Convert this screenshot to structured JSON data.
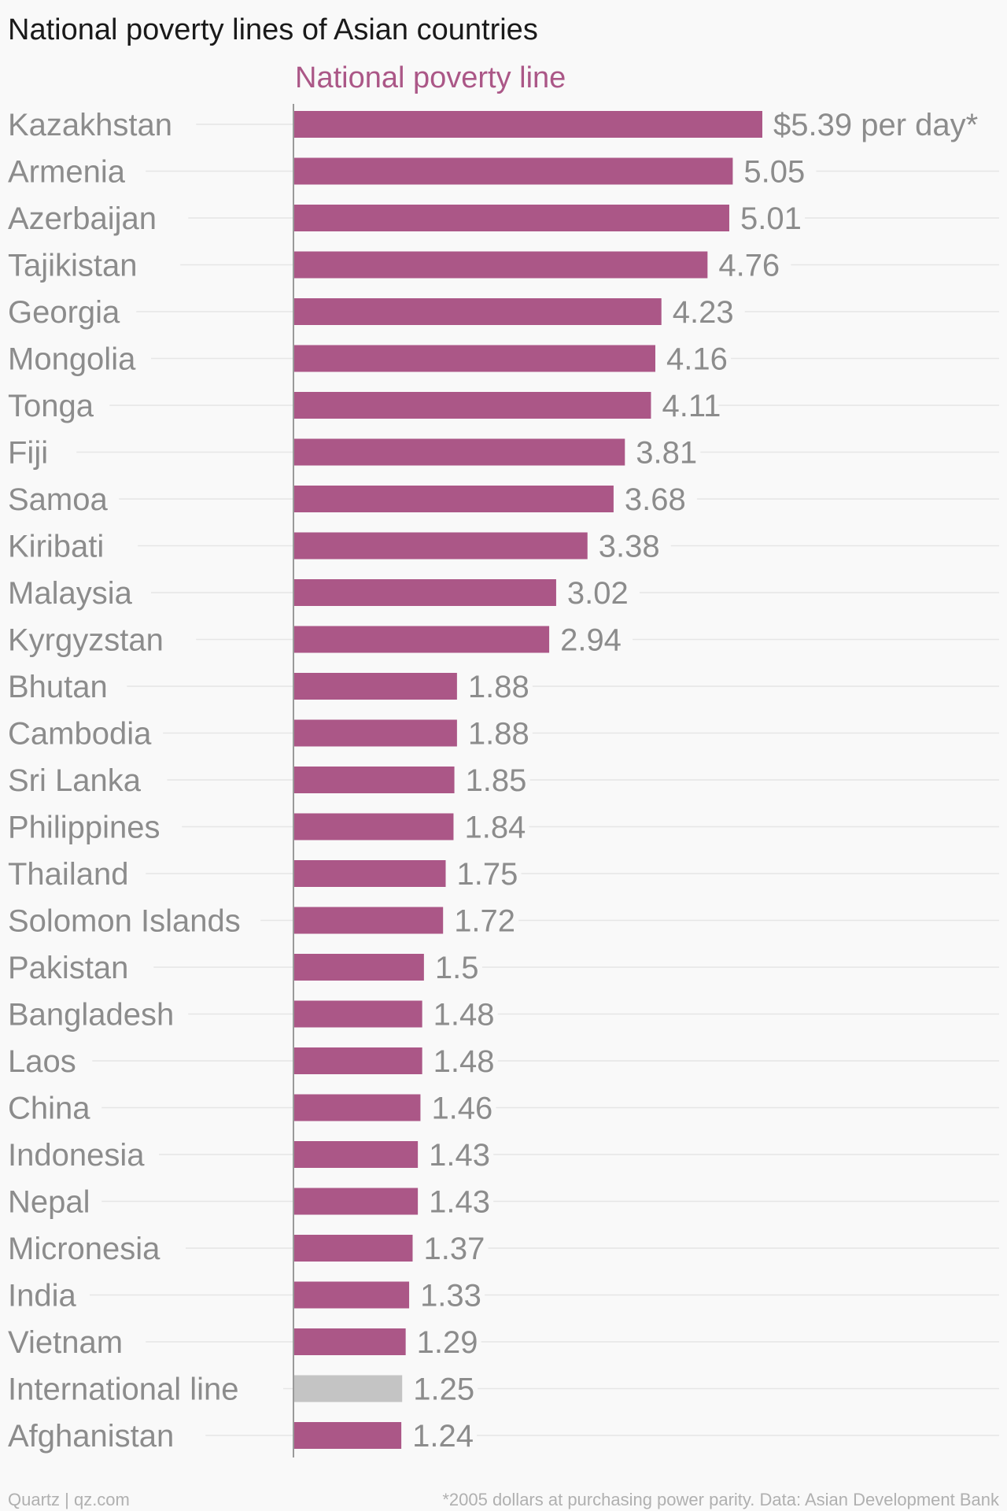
{
  "chart_data": {
    "type": "bar",
    "orientation": "horizontal",
    "title": "National poverty lines of Asian countries",
    "series": [
      {
        "name": "National poverty line",
        "color": "#ab5787"
      }
    ],
    "highlight_color": "#c4c4c4",
    "categories": [
      "Kazakhstan",
      "Armenia",
      "Azerbaijan",
      "Tajikistan",
      "Georgia",
      "Mongolia",
      "Tonga",
      "Fiji",
      "Samoa",
      "Kiribati",
      "Malaysia",
      "Kyrgyzstan",
      "Bhutan",
      "Cambodia",
      "Sri Lanka",
      "Philippines",
      "Thailand",
      "Solomon Islands",
      "Pakistan",
      "Bangladesh",
      "Laos",
      "China",
      "Indonesia",
      "Nepal",
      "Micronesia",
      "India",
      "Vietnam",
      "International line",
      "Afghanistan"
    ],
    "values": [
      5.39,
      5.05,
      5.01,
      4.76,
      4.23,
      4.16,
      4.11,
      3.81,
      3.68,
      3.38,
      3.02,
      2.94,
      1.88,
      1.88,
      1.85,
      1.84,
      1.75,
      1.72,
      1.5,
      1.48,
      1.48,
      1.46,
      1.43,
      1.43,
      1.37,
      1.33,
      1.29,
      1.25,
      1.24
    ],
    "value_labels": [
      "$5.39 per day*",
      "5.05",
      "5.01",
      "4.76",
      "4.23",
      "4.16",
      "4.11",
      "3.81",
      "3.68",
      "3.38",
      "3.02",
      "2.94",
      "1.88",
      "1.88",
      "1.85",
      "1.84",
      "1.75",
      "1.72",
      "1.5",
      "1.48",
      "1.48",
      "1.46",
      "1.43",
      "1.43",
      "1.37",
      "1.33",
      "1.29",
      "1.25",
      "1.24"
    ],
    "highlighted": [
      "International line"
    ],
    "xlim": [
      0,
      5.39
    ],
    "grid": true,
    "legend": "top"
  },
  "footer": {
    "source_left": "Quartz | qz.com",
    "note_right": "*2005 dollars at purchasing power parity. Data: Asian Development Bank"
  }
}
